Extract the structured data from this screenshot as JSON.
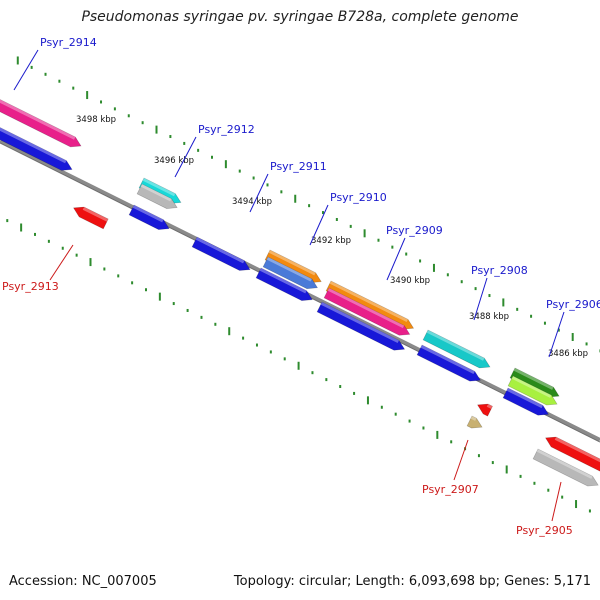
{
  "title": "Pseudomonas syringae pv. syringae B728a, complete genome",
  "footer": {
    "accession": "Accession: NC_007005",
    "summary": "Topology: circular; Length: 6,093,698 bp; Genes: 5,171"
  },
  "colors": {
    "upper_label": "#1a1acc",
    "lower_label": "#cc1a1a",
    "backbone": "#8a8a8a",
    "tick": "#2e8b2e"
  },
  "kbp_labels": [
    {
      "text": "3498 kbp",
      "pos": 3498
    },
    {
      "text": "3496 kbp",
      "pos": 3496
    },
    {
      "text": "3494 kbp",
      "pos": 3494
    },
    {
      "text": "3492 kbp",
      "pos": 3492
    },
    {
      "text": "3490 kbp",
      "pos": 3490
    },
    {
      "text": "3488 kbp",
      "pos": 3488
    },
    {
      "text": "3486 kbp",
      "pos": 3486
    }
  ],
  "gene_labels": [
    {
      "text": "Psyr_2914",
      "side": "upper"
    },
    {
      "text": "Psyr_2913",
      "side": "lower"
    },
    {
      "text": "Psyr_2912",
      "side": "upper"
    },
    {
      "text": "Psyr_2911",
      "side": "upper"
    },
    {
      "text": "Psyr_2910",
      "side": "upper"
    },
    {
      "text": "Psyr_2909",
      "side": "upper"
    },
    {
      "text": "Psyr_2908",
      "side": "upper"
    },
    {
      "text": "Psyr_2907",
      "side": "lower"
    },
    {
      "text": "Psyr_2906",
      "side": "upper"
    },
    {
      "text": "Psyr_2905",
      "side": "lower"
    }
  ]
}
